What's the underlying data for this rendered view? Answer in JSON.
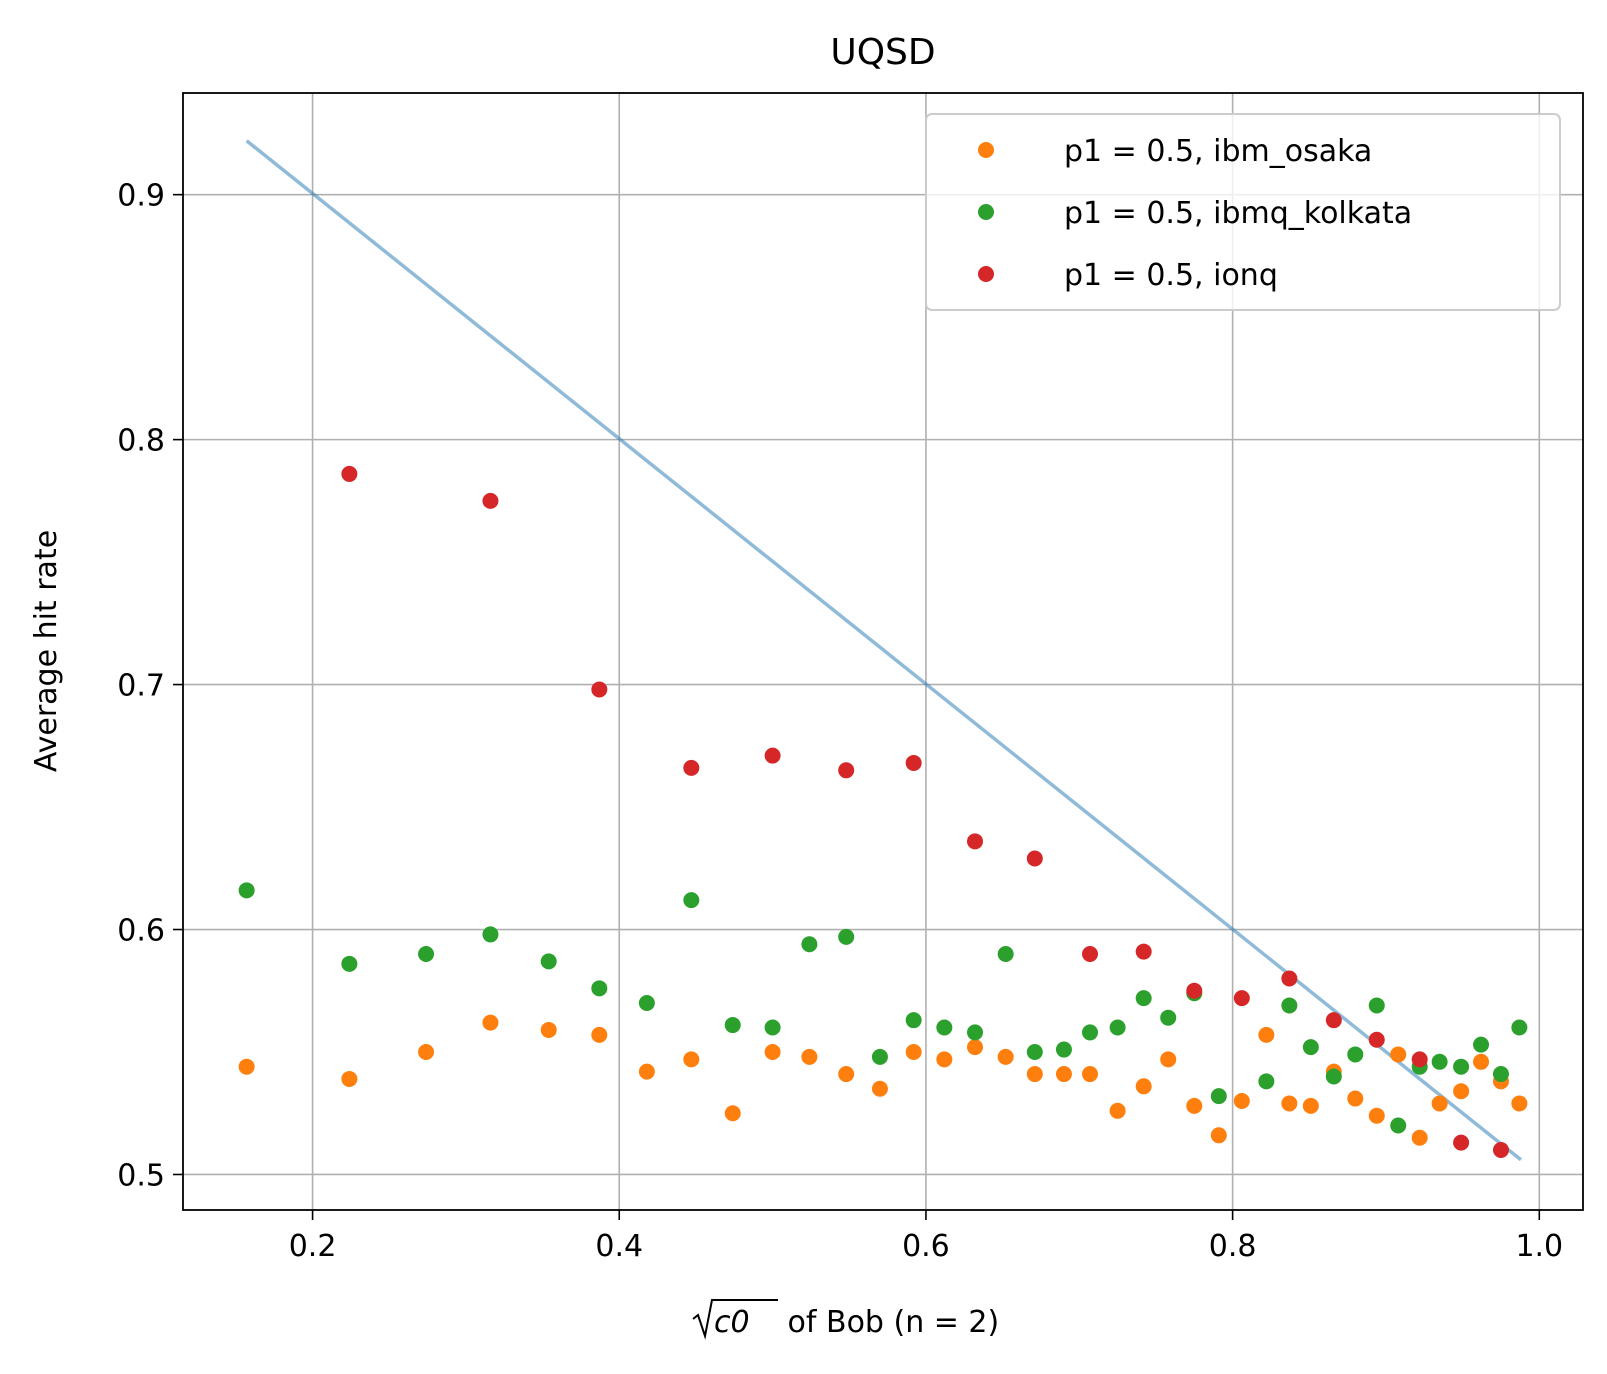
{
  "chart_data": {
    "type": "scatter",
    "title": "UQSD",
    "xlabel_math": "c0",
    "xlabel_suffix": " of Bob (n = 2)",
    "ylabel": "Average hit rate",
    "xlim": [
      0.1155,
      1.0285
    ],
    "ylim": [
      0.4855,
      0.9415
    ],
    "xticks": [
      0.2,
      0.4,
      0.6,
      0.8,
      1.0
    ],
    "xtick_labels": [
      "0.2",
      "0.4",
      "0.6",
      "0.8",
      "1.0"
    ],
    "yticks": [
      0.5,
      0.6,
      0.7,
      0.8,
      0.9
    ],
    "ytick_labels": [
      "0.5",
      "0.6",
      "0.7",
      "0.8",
      "0.9"
    ],
    "grid": true,
    "legend_position": "upper right",
    "reference_line": {
      "color": "#1f77b4",
      "opacity": 0.5,
      "x": [
        0.157,
        0.988
      ],
      "y": [
        0.922,
        0.506
      ]
    },
    "series": [
      {
        "name": "p1 = 0.5, ibm_osaka",
        "color": "#ff7f0e",
        "x": [
          0.157,
          0.224,
          0.274,
          0.316,
          0.354,
          0.387,
          0.418,
          0.447,
          0.474,
          0.5,
          0.524,
          0.548,
          0.57,
          0.592,
          0.612,
          0.632,
          0.652,
          0.671,
          0.69,
          0.707,
          0.725,
          0.742,
          0.758,
          0.775,
          0.791,
          0.806,
          0.822,
          0.837,
          0.851,
          0.866,
          0.88,
          0.894,
          0.908,
          0.922,
          0.935,
          0.949,
          0.962,
          0.975,
          0.987
        ],
        "y": [
          0.544,
          0.539,
          0.55,
          0.562,
          0.559,
          0.557,
          0.542,
          0.547,
          0.525,
          0.55,
          0.548,
          0.541,
          0.535,
          0.55,
          0.547,
          0.552,
          0.548,
          0.541,
          0.541,
          0.541,
          0.526,
          0.536,
          0.547,
          0.528,
          0.516,
          0.53,
          0.557,
          0.529,
          0.528,
          0.542,
          0.531,
          0.524,
          0.549,
          0.515,
          0.529,
          0.534,
          0.546,
          0.538,
          0.529
        ]
      },
      {
        "name": "p1 = 0.5, ibmq_kolkata",
        "color": "#2ca02c",
        "x": [
          0.157,
          0.224,
          0.274,
          0.316,
          0.354,
          0.387,
          0.418,
          0.447,
          0.474,
          0.5,
          0.524,
          0.548,
          0.57,
          0.592,
          0.612,
          0.632,
          0.652,
          0.671,
          0.69,
          0.707,
          0.725,
          0.742,
          0.758,
          0.775,
          0.791,
          0.822,
          0.837,
          0.851,
          0.866,
          0.88,
          0.894,
          0.908,
          0.922,
          0.935,
          0.949,
          0.962,
          0.975,
          0.987
        ],
        "y": [
          0.616,
          0.586,
          0.59,
          0.598,
          0.587,
          0.576,
          0.57,
          0.612,
          0.561,
          0.56,
          0.594,
          0.597,
          0.548,
          0.563,
          0.56,
          0.558,
          0.59,
          0.55,
          0.551,
          0.558,
          0.56,
          0.572,
          0.564,
          0.574,
          0.532,
          0.538,
          0.569,
          0.552,
          0.54,
          0.549,
          0.569,
          0.52,
          0.544,
          0.546,
          0.544,
          0.553,
          0.541,
          0.56
        ]
      },
      {
        "name": "p1 = 0.5, ionq",
        "color": "#d62728",
        "x": [
          0.224,
          0.316,
          0.387,
          0.447,
          0.5,
          0.548,
          0.592,
          0.632,
          0.671,
          0.707,
          0.742,
          0.775,
          0.806,
          0.837,
          0.866,
          0.894,
          0.922,
          0.949,
          0.975
        ],
        "y": [
          0.786,
          0.775,
          0.698,
          0.666,
          0.671,
          0.665,
          0.668,
          0.636,
          0.629,
          0.59,
          0.591,
          0.575,
          0.572,
          0.58,
          0.563,
          0.555,
          0.547,
          0.513,
          0.51
        ]
      }
    ]
  }
}
